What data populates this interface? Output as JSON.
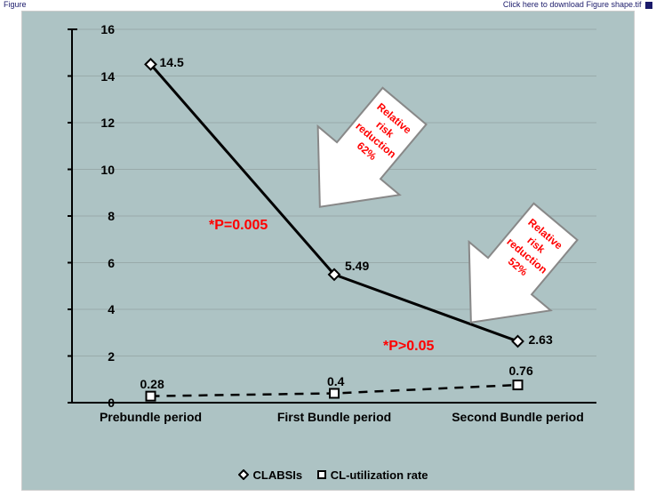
{
  "header": {
    "left_label": "Figure",
    "right_label": "Click here to download Figure shape.tif"
  },
  "chart": {
    "type": "line",
    "background_color": "#adc3c4",
    "axis_color": "#000000",
    "grid_color": "#9aacac",
    "ylim": [
      0,
      16
    ],
    "ytick_step": 2,
    "yticks": [
      0,
      2,
      4,
      6,
      8,
      10,
      12,
      14,
      16
    ],
    "xticks": [
      "Prebundle period",
      "First Bundle period",
      "Second Bundle period"
    ],
    "series": {
      "clabsi": {
        "label": "CLABSIs",
        "marker_shape": "diamond",
        "line_style": "solid",
        "line_width": 3,
        "color": "#000000",
        "values": [
          14.5,
          5.49,
          2.63
        ],
        "value_labels": [
          "14.5",
          "5.49",
          "2.63"
        ]
      },
      "util": {
        "label": "CL-utilization rate",
        "marker_shape": "square",
        "line_style": "dashed",
        "line_width": 2.5,
        "color": "#000000",
        "values": [
          0.28,
          0.4,
          0.76
        ],
        "value_labels": [
          "0.28",
          "0.4",
          "0.76"
        ]
      }
    },
    "annotations": {
      "p1": "*P=0.005",
      "p2": "*P>0.05",
      "arrow1_lines": [
        "Relative",
        "risk",
        "reduction",
        "62%"
      ],
      "arrow2_lines": [
        "Relative",
        "risk",
        "reduction",
        "52%"
      ]
    },
    "fonts": {
      "tick_fontsize": 14,
      "data_label_fontsize": 14,
      "p_label_fontsize": 16,
      "arrow_text_fontsize": 12,
      "legend_fontsize": 13
    }
  }
}
